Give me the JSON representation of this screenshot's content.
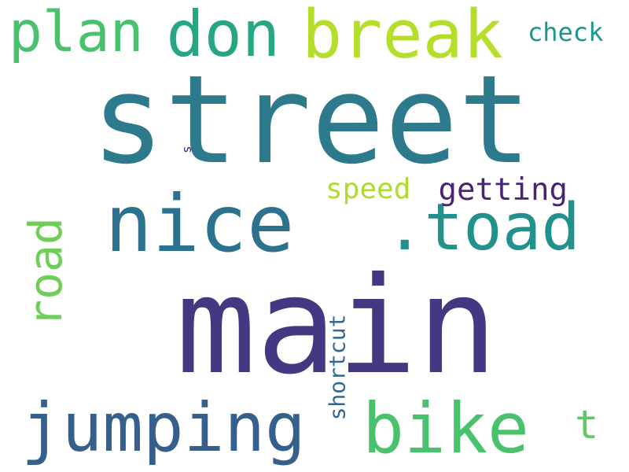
{
  "words": [
    {
      "text": "street",
      "color": "#2c7a8c",
      "rotated": false
    },
    {
      "text": "main",
      "color": "#453781",
      "rotated": false
    },
    {
      "text": "nice",
      "color": "#2c728e",
      "rotated": false
    },
    {
      "text": ".toad",
      "color": "#21918c",
      "rotated": false
    },
    {
      "text": "break",
      "color": "#b5de2b",
      "rotated": false
    },
    {
      "text": "don",
      "color": "#25a784",
      "rotated": false
    },
    {
      "text": "plan",
      "color": "#4ac16d",
      "rotated": false
    },
    {
      "text": "check",
      "color": "#1f968b",
      "rotated": false
    },
    {
      "text": "road",
      "color": "#6ece58",
      "rotated": true
    },
    {
      "text": "jumping",
      "color": "#355f8d",
      "rotated": false
    },
    {
      "text": "bike",
      "color": "#4ac16d",
      "rotated": false
    },
    {
      "text": "t",
      "color": "#5ec962",
      "rotated": false
    },
    {
      "text": "shortcut",
      "color": "#31688e",
      "rotated": true
    },
    {
      "text": "speed",
      "color": "#addc30",
      "rotated": false
    },
    {
      "text": "getting",
      "color": "#482475",
      "rotated": false
    },
    {
      "text": "s",
      "color": "#481f70",
      "rotated": true
    }
  ]
}
